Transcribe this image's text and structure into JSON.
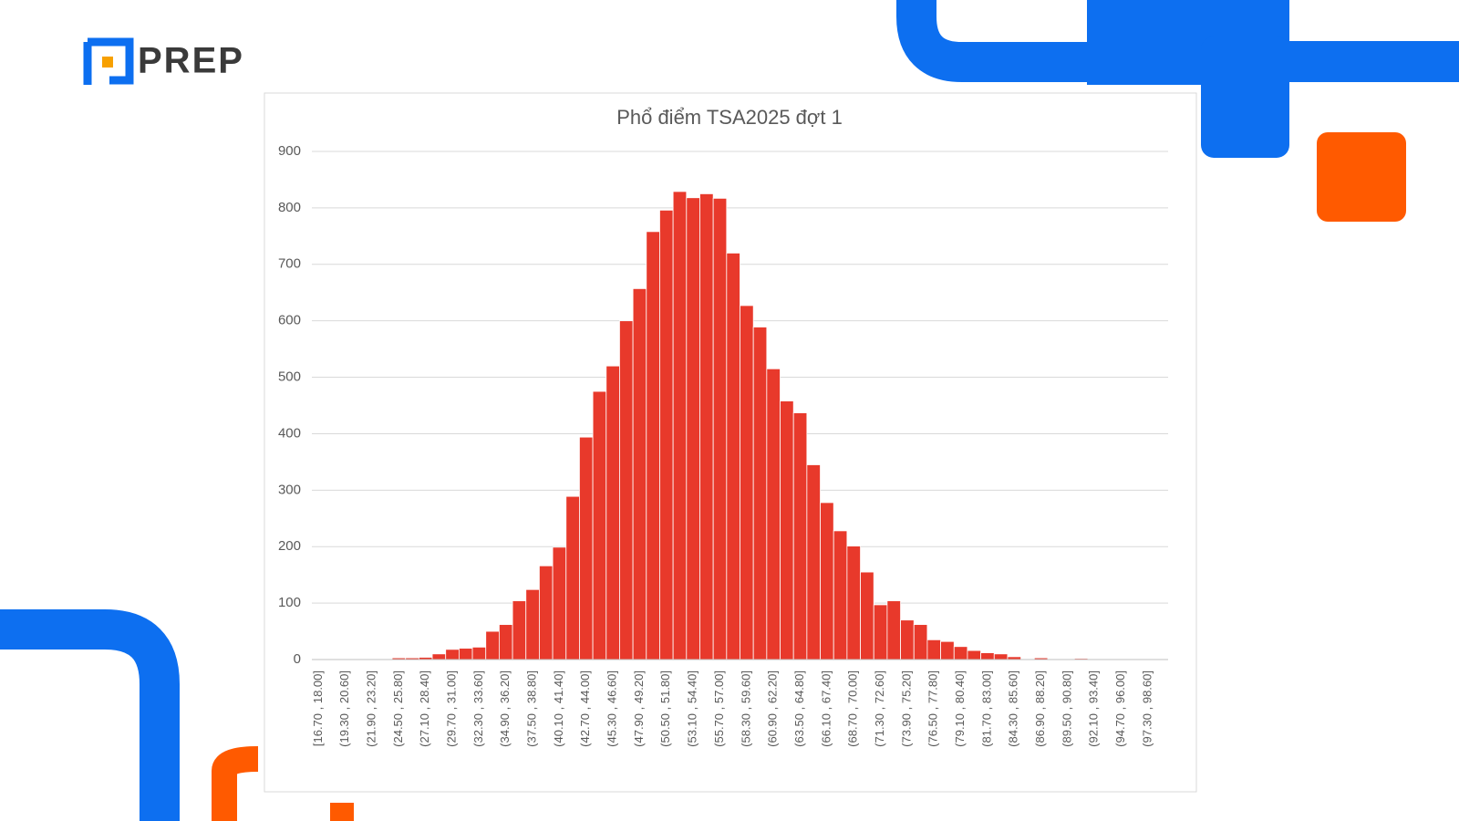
{
  "logo": "PREP",
  "chart_data": {
    "type": "bar",
    "title": "Phổ điểm TSA2025 đợt 1",
    "categories": [
      "[16.70 , 18.00]",
      null,
      "(19.30 , 20.60]",
      null,
      "(21.90 , 23.20]",
      null,
      "(24.50 , 25.80]",
      null,
      "(27.10 , 28.40]",
      null,
      "(29.70 , 31.00]",
      null,
      "(32.30 , 33.60]",
      null,
      "(34.90 , 36.20]",
      null,
      "(37.50 , 38.80]",
      null,
      "(40.10 , 41.40]",
      null,
      "(42.70 , 44.00]",
      null,
      "(45.30 , 46.60]",
      null,
      "(47.90 , 49.20]",
      null,
      "(50.50 , 51.80]",
      null,
      "(53.10 , 54.40]",
      null,
      "(55.70 , 57.00]",
      null,
      "(58.30 , 59.60]",
      null,
      "(60.90 , 62.20]",
      null,
      "(63.50 , 64.80]",
      null,
      "(66.10 , 67.40]",
      null,
      "(68.70 , 70.00]",
      null,
      "(71.30 , 72.60]",
      null,
      "(73.90 , 75.20]",
      null,
      "(76.50 , 77.80]",
      null,
      "(79.10 , 80.40]",
      null,
      "(81.70 , 83.00]",
      null,
      "(84.30 , 85.60]",
      null,
      "(86.90 , 88.20]",
      null,
      "(89.50 , 90.80]",
      null,
      "(92.10 , 93.40]",
      null,
      "(94.70 , 96.00]",
      null,
      "(97.30 , 98.60]",
      null
    ],
    "values": [
      0,
      0,
      0,
      0,
      0,
      0,
      3,
      3,
      4,
      10,
      18,
      20,
      22,
      50,
      62,
      104,
      124,
      166,
      199,
      289,
      394,
      475,
      520,
      600,
      657,
      758,
      796,
      829,
      818,
      825,
      817,
      720,
      627,
      589,
      515,
      458,
      437,
      345,
      278,
      228,
      201,
      155,
      97,
      104,
      70,
      62,
      35,
      32,
      23,
      16,
      12,
      10,
      5,
      0,
      3,
      0,
      0,
      2,
      0,
      0,
      0,
      0,
      0,
      0
    ],
    "color": "#e8392b",
    "ylim": [
      0,
      900
    ],
    "yticks": [
      0,
      100,
      200,
      300,
      400,
      500,
      600,
      700,
      800,
      900
    ],
    "grid": true
  }
}
